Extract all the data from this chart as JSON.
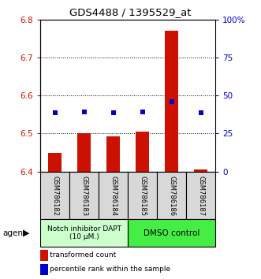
{
  "title": "GDS4488 / 1395529_at",
  "samples": [
    "GSM786182",
    "GSM786183",
    "GSM786184",
    "GSM786185",
    "GSM786186",
    "GSM786187"
  ],
  "bar_values": [
    6.449,
    6.5,
    6.492,
    6.505,
    6.77,
    6.405
  ],
  "bar_bottom": 6.4,
  "blue_values": [
    6.555,
    6.557,
    6.554,
    6.556,
    6.583,
    6.554
  ],
  "ylim_left": [
    6.4,
    6.8
  ],
  "ylim_right": [
    0,
    100
  ],
  "yticks_left": [
    6.4,
    6.5,
    6.6,
    6.7,
    6.8
  ],
  "yticks_right": [
    0,
    25,
    50,
    75,
    100
  ],
  "ytick_labels_right": [
    "0",
    "25",
    "50",
    "75",
    "100%"
  ],
  "bar_color": "#cc1100",
  "blue_color": "#0000cc",
  "group1_label": "Notch inhibitor DAPT\n(10 μM.)",
  "group2_label": "DMSO control",
  "group1_color": "#ccffcc",
  "group2_color": "#44ee44",
  "agent_label": "agent",
  "legend_bar_label": "transformed count",
  "legend_blue_label": "percentile rank within the sample",
  "tick_label_area_color": "#d8d8d8",
  "gridline_ticks": [
    6.5,
    6.6,
    6.7
  ],
  "bar_width": 0.45
}
